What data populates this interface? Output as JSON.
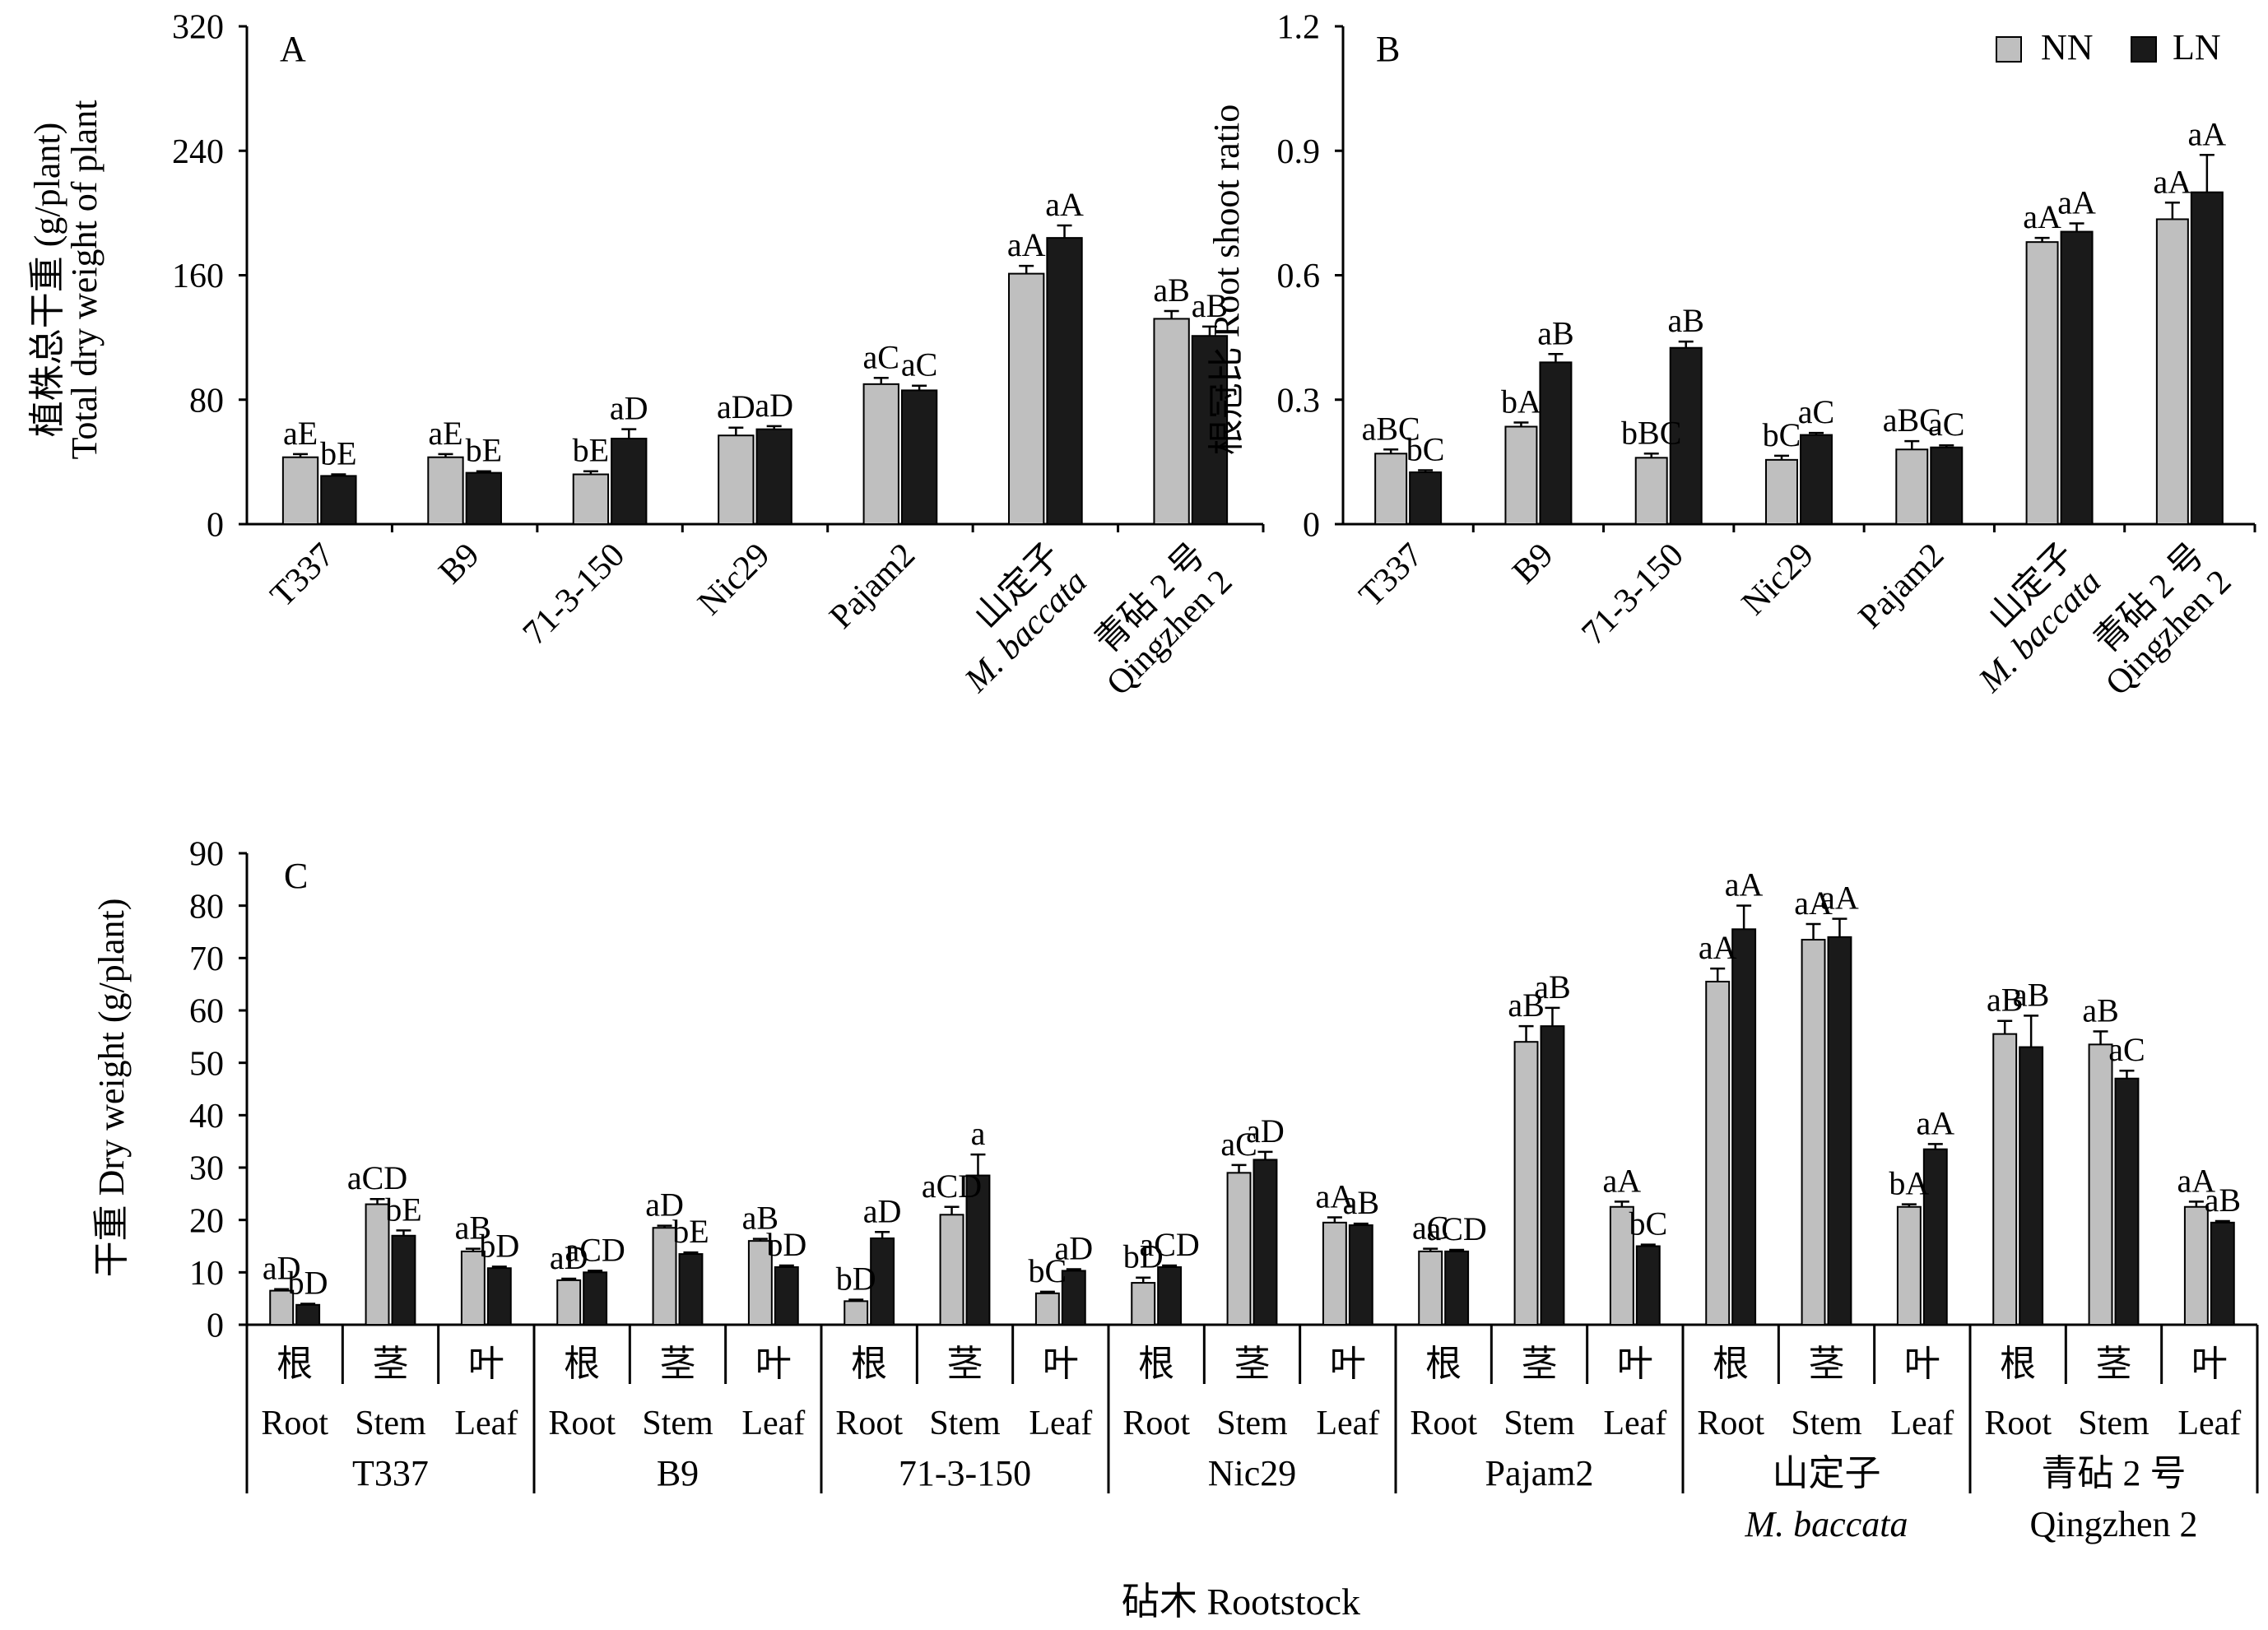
{
  "legend": {
    "nn_label": "NN",
    "ln_label": "LN",
    "nn_color": "#bfbfbf",
    "ln_color": "#1a1a1a"
  },
  "xlabel_bottom": "砧木 Rootstock",
  "chart_data": [
    {
      "type": "bar",
      "panel_label": "A",
      "ylabel_cn": "植株总干重 (g/plant)",
      "ylabel_en": "Total dry weight of plant",
      "ylim": [
        0,
        320
      ],
      "yticks": [
        "0",
        "80",
        "160",
        "240",
        "320"
      ],
      "categories": [
        {
          "lines": [
            "T337"
          ]
        },
        {
          "lines": [
            "B9"
          ]
        },
        {
          "lines": [
            "71-3-150"
          ]
        },
        {
          "lines": [
            "Nic29"
          ]
        },
        {
          "lines": [
            "Pajam2"
          ]
        },
        {
          "lines": [
            "山定子",
            "M. baccata"
          ],
          "italic_line": 1
        },
        {
          "lines": [
            "青砧 2 号",
            "Qingzhen 2"
          ]
        }
      ],
      "series": [
        {
          "name": "NN",
          "values": [
            43,
            43,
            32,
            57,
            90,
            161,
            132
          ],
          "errors": [
            2,
            2,
            2,
            5,
            4,
            5,
            5
          ],
          "labels": [
            "aE",
            "aE",
            "bE",
            "aD",
            "aC",
            "aA",
            "aB"
          ]
        },
        {
          "name": "LN",
          "values": [
            31,
            33,
            55,
            61,
            86,
            184,
            121
          ],
          "errors": [
            1,
            1,
            6,
            2,
            3,
            8,
            6
          ],
          "labels": [
            "bE",
            "bE",
            "aD",
            "aD",
            "aC",
            "aA",
            "aB"
          ]
        }
      ]
    },
    {
      "type": "bar",
      "panel_label": "B",
      "ylabel_cn": "根冠比 Root shoot ratio",
      "ylim": [
        0,
        1.2
      ],
      "yticks": [
        "0",
        "0.3",
        "0.6",
        "0.9",
        "1.2"
      ],
      "categories": [
        {
          "lines": [
            "T337"
          ]
        },
        {
          "lines": [
            "B9"
          ]
        },
        {
          "lines": [
            "71-3-150"
          ]
        },
        {
          "lines": [
            "Nic29"
          ]
        },
        {
          "lines": [
            "Pajam2"
          ]
        },
        {
          "lines": [
            "山定子",
            "M. baccata"
          ],
          "italic_line": 1
        },
        {
          "lines": [
            "青砧 2 号",
            "Qingzhen 2"
          ]
        }
      ],
      "series": [
        {
          "name": "NN",
          "values": [
            0.17,
            0.235,
            0.16,
            0.155,
            0.18,
            0.68,
            0.735
          ],
          "errors": [
            0.01,
            0.01,
            0.01,
            0.01,
            0.02,
            0.01,
            0.04
          ],
          "labels": [
            "aBC",
            "bA",
            "bBC",
            "bC",
            "aBC",
            "aA",
            "aA"
          ]
        },
        {
          "name": "LN",
          "values": [
            0.125,
            0.39,
            0.425,
            0.215,
            0.185,
            0.705,
            0.8
          ],
          "errors": [
            0.005,
            0.02,
            0.015,
            0.005,
            0.005,
            0.02,
            0.09
          ],
          "labels": [
            "bC",
            "aB",
            "aB",
            "aC",
            "aC",
            "aA",
            "aA"
          ]
        }
      ]
    },
    {
      "type": "bar",
      "panel_label": "C",
      "ylabel": "干重 Dry weight (g/plant)",
      "ylim": [
        0,
        90
      ],
      "yticks": [
        "0",
        "10",
        "20",
        "30",
        "40",
        "50",
        "60",
        "70",
        "80",
        "90"
      ],
      "organs": [
        {
          "cn": "根",
          "en": "Root"
        },
        {
          "cn": "茎",
          "en": "Stem"
        },
        {
          "cn": "叶",
          "en": "Leaf"
        }
      ],
      "groups": [
        {
          "lines": [
            "T337"
          ]
        },
        {
          "lines": [
            "B9"
          ]
        },
        {
          "lines": [
            "71-3-150"
          ]
        },
        {
          "lines": [
            "Nic29"
          ]
        },
        {
          "lines": [
            "Pajam2"
          ]
        },
        {
          "lines": [
            "山定子",
            "M. baccata"
          ],
          "italic_line": 1
        },
        {
          "lines": [
            "青砧 2 号",
            "Qingzhen 2"
          ]
        }
      ],
      "series": [
        {
          "name": "NN",
          "values": [
            6.5,
            23,
            14,
            8.5,
            18.5,
            16,
            4.5,
            21,
            6,
            8,
            29,
            19.5,
            14,
            54,
            22.5,
            65.5,
            73.5,
            22.5,
            55.5,
            53.5,
            22.5
          ],
          "errors": [
            0.3,
            1,
            0.5,
            0.3,
            0.4,
            0.4,
            0.3,
            1.5,
            0.3,
            1,
            1.5,
            1,
            0.5,
            3,
            1,
            2.5,
            3,
            0.5,
            2.5,
            2.5,
            1
          ],
          "labels": [
            "aD",
            "aCD",
            "aB",
            "aD",
            "aD",
            "aB",
            "bD",
            "aCD",
            "bC",
            "bD",
            "aC",
            "aA",
            "aC",
            "aB",
            "aA",
            "aA",
            "aA",
            "bA",
            "aB",
            "aB",
            "aA"
          ]
        },
        {
          "name": "LN",
          "values": [
            3.8,
            17,
            10.8,
            10,
            13.5,
            11,
            16.5,
            28.5,
            10.3,
            11,
            31.5,
            19,
            14,
            57,
            15,
            75.5,
            74,
            33.5,
            53,
            47,
            19.5
          ],
          "errors": [
            0.2,
            1,
            0.3,
            0.3,
            0.3,
            0.3,
            1.2,
            4,
            0.3,
            0.3,
            1.5,
            0.3,
            0.3,
            3.5,
            0.3,
            4.5,
            3.5,
            1,
            6,
            1.5,
            0.3
          ],
          "labels": [
            "bD",
            "bE",
            "bD",
            "aCD",
            "bE",
            "bD",
            "aD",
            "a",
            "aD",
            "aCD",
            "aD",
            "aB",
            "aCD",
            "aB",
            "bC",
            "aA",
            "aA",
            "aA",
            "aB",
            "aC",
            "aB"
          ]
        }
      ]
    }
  ]
}
